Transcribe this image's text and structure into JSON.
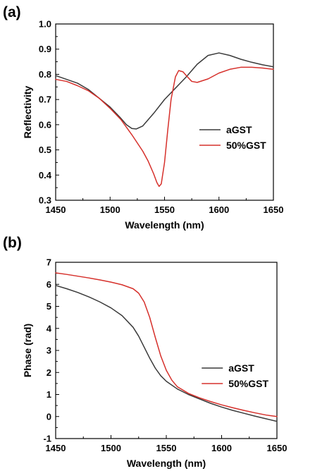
{
  "chart_data": [
    {
      "panel_label": "(a)",
      "type": "line",
      "xlabel": "Wavelength (nm)",
      "ylabel": "Reflectivity",
      "xlim": [
        1450,
        1650
      ],
      "ylim": [
        0.3,
        1.0
      ],
      "xticks": [
        1450,
        1500,
        1550,
        1600,
        1650
      ],
      "yticks": [
        0.3,
        0.4,
        0.5,
        0.6,
        0.7,
        0.8,
        0.9,
        1.0
      ],
      "xtick_labels": [
        "1450",
        "1500",
        "1550",
        "1600",
        "1650"
      ],
      "ytick_labels": [
        "0.3",
        "0.4",
        "0.5",
        "0.6",
        "0.7",
        "0.8",
        "0.9",
        "1.0"
      ],
      "grid": false,
      "legend": "center-right",
      "series": [
        {
          "name": "aGST",
          "color": "#3a3a3a",
          "x": [
            1450,
            1460,
            1470,
            1480,
            1490,
            1500,
            1510,
            1515,
            1520,
            1524,
            1530,
            1540,
            1550,
            1560,
            1570,
            1580,
            1590,
            1600,
            1610,
            1620,
            1630,
            1640,
            1650
          ],
          "y": [
            0.795,
            0.78,
            0.765,
            0.74,
            0.705,
            0.67,
            0.625,
            0.6,
            0.585,
            0.583,
            0.595,
            0.645,
            0.7,
            0.745,
            0.79,
            0.84,
            0.875,
            0.885,
            0.875,
            0.86,
            0.848,
            0.838,
            0.83
          ]
        },
        {
          "name": "50%GST",
          "color": "#d6302b",
          "x": [
            1450,
            1460,
            1470,
            1480,
            1490,
            1500,
            1510,
            1520,
            1530,
            1535,
            1540,
            1543,
            1545,
            1547,
            1550,
            1553,
            1556,
            1560,
            1563,
            1567,
            1570,
            1575,
            1580,
            1590,
            1600,
            1610,
            1620,
            1630,
            1640,
            1650
          ],
          "y": [
            0.78,
            0.772,
            0.755,
            0.735,
            0.705,
            0.665,
            0.62,
            0.56,
            0.495,
            0.455,
            0.405,
            0.37,
            0.355,
            0.365,
            0.45,
            0.58,
            0.7,
            0.79,
            0.815,
            0.81,
            0.795,
            0.772,
            0.768,
            0.782,
            0.805,
            0.82,
            0.828,
            0.828,
            0.825,
            0.82
          ]
        }
      ]
    },
    {
      "panel_label": "(b)",
      "type": "line",
      "xlabel": "Wavelength (nm)",
      "ylabel": "Phase (rad)",
      "xlim": [
        1450,
        1650
      ],
      "ylim": [
        -1,
        7
      ],
      "xticks": [
        1450,
        1500,
        1550,
        1600,
        1650
      ],
      "yticks": [
        -1,
        0,
        1,
        2,
        3,
        4,
        5,
        6,
        7
      ],
      "xtick_labels": [
        "1450",
        "1500",
        "1550",
        "1600",
        "1650"
      ],
      "ytick_labels": [
        "-1",
        "0",
        "1",
        "2",
        "3",
        "4",
        "5",
        "6",
        "7"
      ],
      "grid": false,
      "legend": "center-right",
      "series": [
        {
          "name": "aGST",
          "color": "#3a3a3a",
          "x": [
            1450,
            1460,
            1470,
            1480,
            1490,
            1500,
            1510,
            1520,
            1525,
            1530,
            1535,
            1540,
            1545,
            1550,
            1560,
            1570,
            1580,
            1590,
            1600,
            1610,
            1620,
            1630,
            1640,
            1650
          ],
          "y": [
            5.95,
            5.8,
            5.63,
            5.43,
            5.2,
            4.93,
            4.58,
            4.05,
            3.65,
            3.15,
            2.65,
            2.2,
            1.85,
            1.6,
            1.25,
            1.0,
            0.8,
            0.6,
            0.43,
            0.28,
            0.15,
            0.02,
            -0.1,
            -0.22
          ]
        },
        {
          "name": "50%GST",
          "color": "#d6302b",
          "x": [
            1450,
            1460,
            1470,
            1480,
            1490,
            1500,
            1510,
            1520,
            1525,
            1530,
            1535,
            1540,
            1545,
            1550,
            1555,
            1560,
            1570,
            1580,
            1590,
            1600,
            1610,
            1620,
            1630,
            1640,
            1650
          ],
          "y": [
            6.52,
            6.45,
            6.37,
            6.29,
            6.2,
            6.1,
            5.98,
            5.8,
            5.6,
            5.2,
            4.5,
            3.6,
            2.75,
            2.1,
            1.65,
            1.35,
            1.05,
            0.85,
            0.68,
            0.53,
            0.4,
            0.28,
            0.17,
            0.07,
            0.0
          ]
        }
      ]
    }
  ]
}
